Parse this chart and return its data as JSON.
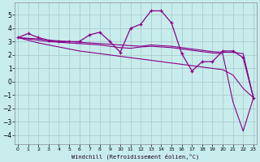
{
  "x": [
    0,
    1,
    2,
    3,
    4,
    5,
    6,
    7,
    8,
    9,
    10,
    11,
    12,
    13,
    14,
    15,
    16,
    17,
    18,
    19,
    20,
    21,
    22,
    23
  ],
  "y_main": [
    3.3,
    3.6,
    3.3,
    3.1,
    3.0,
    3.0,
    3.0,
    3.5,
    3.7,
    3.0,
    2.2,
    4.0,
    4.3,
    5.3,
    5.3,
    4.4,
    2.1,
    0.8,
    1.5,
    1.5,
    2.3,
    2.3,
    1.8,
    -1.2
  ],
  "y_smooth1": [
    3.3,
    3.25,
    3.2,
    3.1,
    3.05,
    3.0,
    2.95,
    2.9,
    2.85,
    2.8,
    2.75,
    2.7,
    2.65,
    2.75,
    2.7,
    2.65,
    2.55,
    2.45,
    2.35,
    2.25,
    2.2,
    2.2,
    2.1,
    -1.2
  ],
  "y_smooth2": [
    3.3,
    3.2,
    3.1,
    3.0,
    2.95,
    2.9,
    2.85,
    2.8,
    2.75,
    2.65,
    2.55,
    2.5,
    2.6,
    2.65,
    2.6,
    2.55,
    2.45,
    2.35,
    2.25,
    2.15,
    2.1,
    -1.5,
    -3.7,
    -1.2
  ],
  "y_linear": [
    3.3,
    3.1,
    2.9,
    2.75,
    2.6,
    2.45,
    2.3,
    2.2,
    2.1,
    2.0,
    1.9,
    1.8,
    1.7,
    1.6,
    1.5,
    1.4,
    1.3,
    1.2,
    1.1,
    1.0,
    0.9,
    0.5,
    -0.5,
    -1.2
  ],
  "line_color": "#880088",
  "bg_color": "#c8ecec",
  "grid_color": "#aacccc",
  "xlabel": "Windchill (Refroidissement éolien,°C)",
  "xticks": [
    0,
    1,
    2,
    3,
    4,
    5,
    6,
    7,
    8,
    9,
    10,
    11,
    12,
    13,
    14,
    15,
    16,
    17,
    18,
    19,
    20,
    21,
    22,
    23
  ],
  "yticks": [
    -4,
    -3,
    -2,
    -1,
    0,
    1,
    2,
    3,
    4,
    5
  ],
  "xlim": [
    -0.3,
    23.3
  ],
  "ylim": [
    -4.7,
    5.9
  ]
}
